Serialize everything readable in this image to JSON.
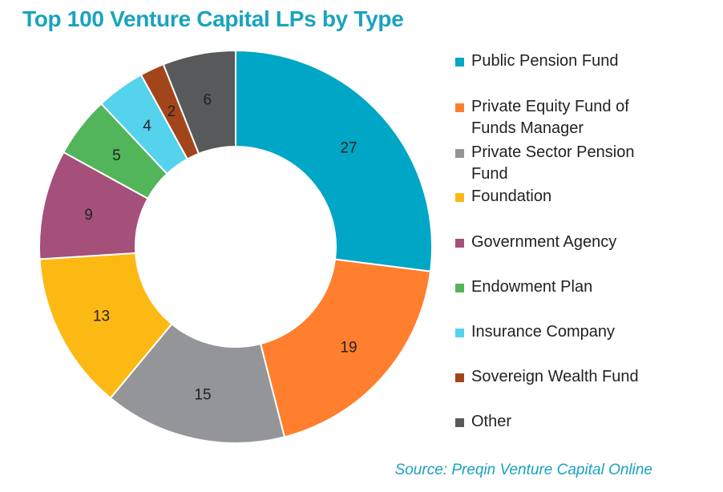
{
  "title": "Top 100 Venture Capital LPs by Type",
  "source": "Source: Preqin Venture Capital Online",
  "chart_data": {
    "type": "pie",
    "variant": "donut",
    "title": "Top 100 Venture Capital LPs by Type",
    "legend_position": "right",
    "categories": [
      "Public Pension Fund",
      "Private Equity Fund of Funds Manager",
      "Private Sector Pension Fund",
      "Foundation",
      "Government Agency",
      "Endowment Plan",
      "Insurance Company",
      "Sovereign Wealth Fund",
      "Other"
    ],
    "values": [
      27,
      19,
      15,
      13,
      9,
      5,
      4,
      2,
      6
    ],
    "colors": [
      "#00a6c6",
      "#ff7f2e",
      "#939598",
      "#fdb913",
      "#a54f7b",
      "#52b55a",
      "#55d2ec",
      "#a3451b",
      "#58595b"
    ],
    "data_labels": [
      "27",
      "19",
      "15",
      "13",
      "9",
      "5",
      "4",
      "2",
      "6"
    ]
  }
}
